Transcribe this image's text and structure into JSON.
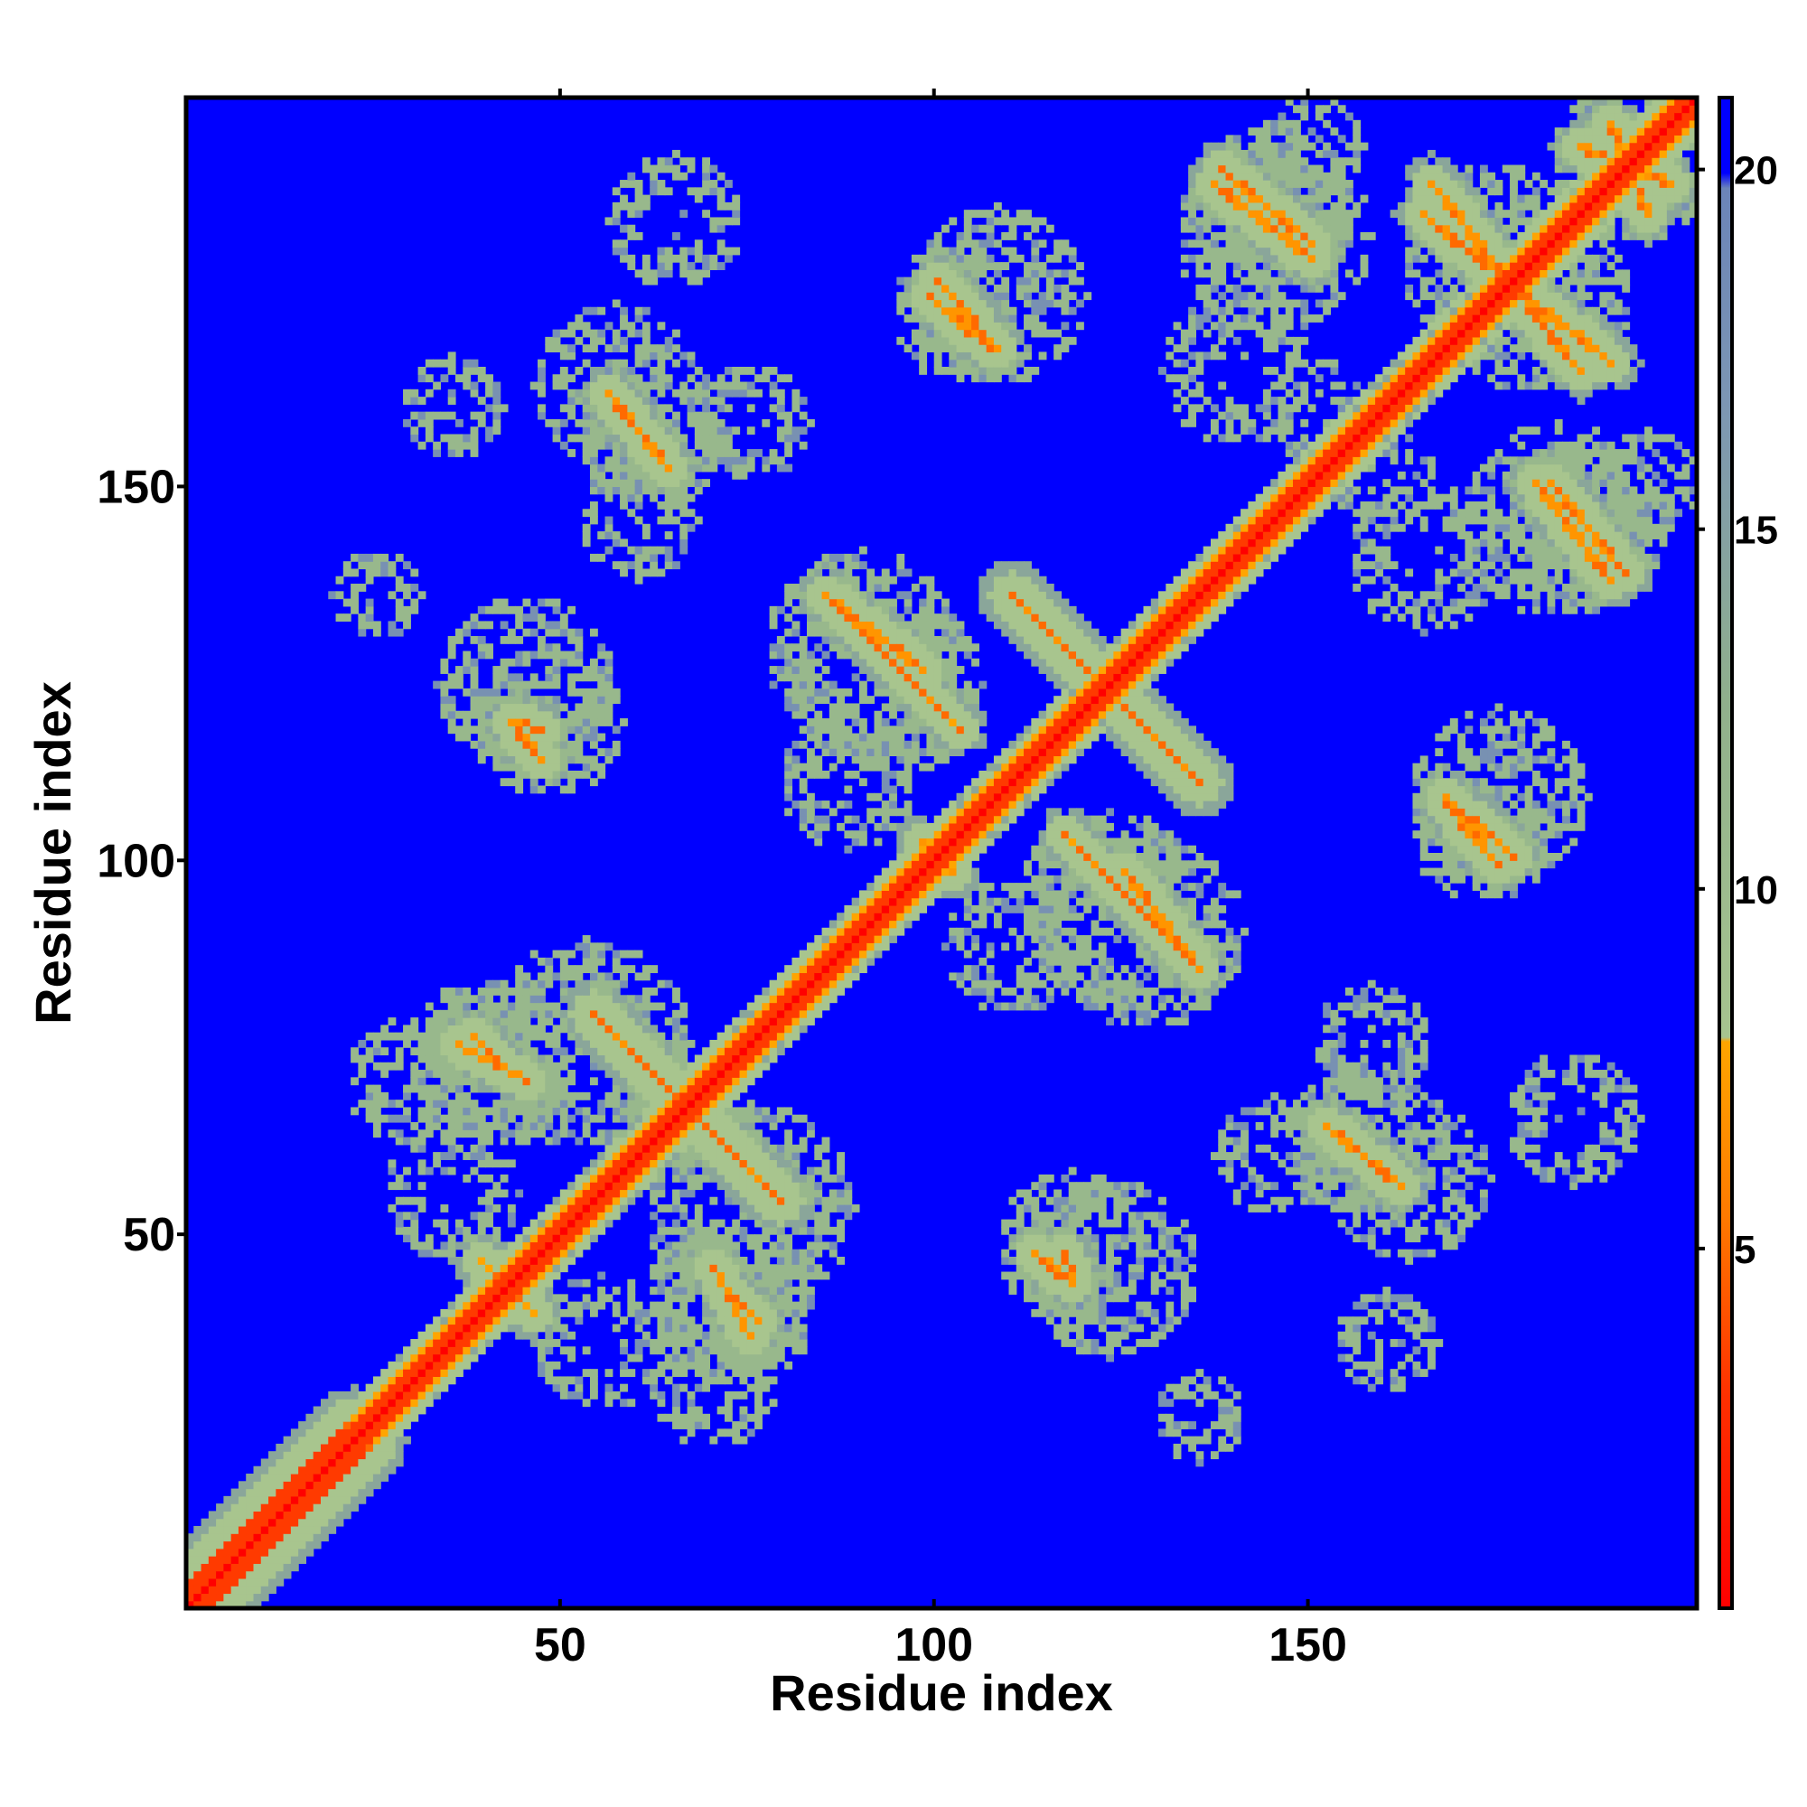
{
  "chart_data": {
    "type": "heatmap",
    "title": "",
    "xlabel": "Residue index",
    "ylabel": "Residue index",
    "xlim": [
      0,
      202
    ],
    "ylim": [
      0,
      202
    ],
    "x_ticks": [
      50,
      100,
      150
    ],
    "y_ticks": [
      50,
      100,
      150
    ],
    "x_tick_labels": [
      "50",
      "100",
      "150"
    ],
    "y_tick_labels": [
      "50",
      "100",
      "150"
    ],
    "n_residues": 202,
    "background_value": 21,
    "colorbar": {
      "min": 0,
      "max": 21,
      "ticks": [
        5,
        10,
        15,
        20
      ],
      "tick_labels": [
        "5",
        "10",
        "15",
        "20"
      ],
      "colors": [
        "#ff0000",
        "#ff4400",
        "#ff8c00",
        "#ffa500",
        "#a7c48f",
        "#8fb08e",
        "#6f8fb0",
        "#0000ff"
      ]
    },
    "diagonal": {
      "value_on": 1.5,
      "value_near": 3.5,
      "value_halo": 10
    },
    "contact_segments": [
      {
        "from": [
          2,
          2
        ],
        "to": [
          22,
          22
        ],
        "value": 5,
        "width": 4
      },
      {
        "from": [
          54,
          79
        ],
        "to": [
          79,
          54
        ],
        "value": 6,
        "width": 1.5
      },
      {
        "from": [
          36,
          75
        ],
        "to": [
          45,
          70
        ],
        "value": 6.5,
        "width": 1
      },
      {
        "from": [
          39,
          46
        ],
        "to": [
          45,
          40
        ],
        "value": 7,
        "width": 1
      },
      {
        "from": [
          57,
          160
        ],
        "to": [
          63,
          154
        ],
        "value": 6.5,
        "width": 1
      },
      {
        "from": [
          85,
          135
        ],
        "to": [
          98,
          125
        ],
        "value": 6.5,
        "width": 1
      },
      {
        "from": [
          110,
          135
        ],
        "to": [
          135,
          110
        ],
        "value": 6.5,
        "width": 1.5
      },
      {
        "from": [
          120,
          100
        ],
        "to": [
          135,
          85
        ],
        "value": 6.5,
        "width": 1
      },
      {
        "from": [
          72,
          42
        ],
        "to": [
          76,
          38
        ],
        "value": 6.5,
        "width": 1
      },
      {
        "from": [
          99,
          175
        ],
        "to": [
          107,
          168
        ],
        "value": 6.5,
        "width": 1
      },
      {
        "from": [
          137,
          190
        ],
        "to": [
          150,
          180
        ],
        "value": 6.5,
        "width": 1
      },
      {
        "from": [
          166,
          190
        ],
        "to": [
          186,
          165
        ],
        "value": 6.5,
        "width": 1
      },
      {
        "from": [
          182,
          150
        ],
        "to": [
          192,
          138
        ],
        "value": 6.5,
        "width": 1
      },
      {
        "from": [
          168,
          108
        ],
        "to": [
          177,
          100
        ],
        "value": 6.5,
        "width": 1
      },
      {
        "from": [
          152,
          64
        ],
        "to": [
          162,
          56
        ],
        "value": 6.5,
        "width": 1
      },
      {
        "from": [
          117,
          47
        ],
        "to": [
          118,
          44
        ],
        "value": 6,
        "width": 1
      },
      {
        "from": [
          43,
          118
        ],
        "to": [
          47,
          113
        ],
        "value": 6,
        "width": 1
      },
      {
        "from": [
          186,
          195
        ],
        "to": [
          198,
          190
        ],
        "value": 6.5,
        "width": 1
      },
      {
        "from": [
          117,
          103
        ],
        "to": [
          125,
          95
        ],
        "value": 7,
        "width": 0.8
      },
      {
        "from": [
          98,
          102
        ],
        "to": [
          100,
          99
        ],
        "value": 6,
        "width": 0.8
      }
    ],
    "noise_blobs": [
      {
        "center": [
          48,
          118
        ],
        "radius": 10
      },
      {
        "center": [
          57,
          163
        ],
        "radius": 11
      },
      {
        "center": [
          75,
          158
        ],
        "radius": 8
      },
      {
        "center": [
          104,
          173
        ],
        "radius": 10
      },
      {
        "center": [
          90,
          128
        ],
        "radius": 13
      },
      {
        "center": [
          53,
          75
        ],
        "radius": 14
      },
      {
        "center": [
          40,
          72
        ],
        "radius": 12
      },
      {
        "center": [
          72,
          40
        ],
        "radius": 10
      },
      {
        "center": [
          55,
          35
        ],
        "radius": 9
      },
      {
        "center": [
          123,
          45
        ],
        "radius": 12
      },
      {
        "center": [
          123,
          93
        ],
        "radius": 13
      },
      {
        "center": [
          145,
          183
        ],
        "radius": 13
      },
      {
        "center": [
          175,
          180
        ],
        "radius": 13
      },
      {
        "center": [
          187,
          145
        ],
        "radius": 11
      },
      {
        "center": [
          165,
          140
        ],
        "radius": 10
      },
      {
        "center": [
          175,
          108
        ],
        "radius": 12
      },
      {
        "center": [
          157,
          62
        ],
        "radius": 10
      },
      {
        "center": [
          185,
          65
        ],
        "radius": 9
      },
      {
        "center": [
          110,
          88
        ],
        "radius": 9
      },
      {
        "center": [
          30,
          70
        ],
        "radius": 9
      },
      {
        "center": [
          145,
          60
        ],
        "radius": 8
      },
      {
        "center": [
          135,
          25
        ],
        "radius": 6
      },
      {
        "center": [
          35,
          160
        ],
        "radius": 7
      },
      {
        "center": [
          195,
          190
        ],
        "radius": 8
      },
      {
        "center": [
          195,
          150
        ],
        "radius": 7
      },
      {
        "center": [
          150,
          160
        ],
        "radius": 7
      }
    ],
    "legend": "right"
  }
}
